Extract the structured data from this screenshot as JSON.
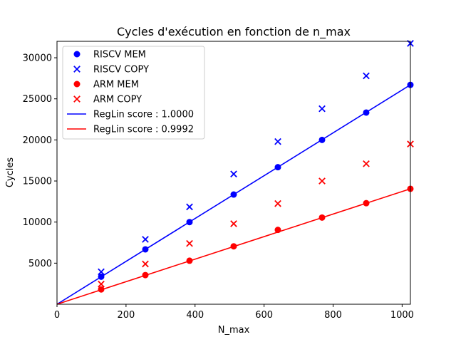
{
  "chart_data": {
    "type": "scatter",
    "title": "Cycles d'exécution en fonction de n_max",
    "xlabel": "N_max",
    "ylabel": "Cycles",
    "xlim": [
      0,
      1024
    ],
    "ylim": [
      0,
      32000
    ],
    "xticks": [
      0,
      200,
      400,
      600,
      800,
      1000
    ],
    "yticks": [
      5000,
      10000,
      15000,
      20000,
      25000,
      30000
    ],
    "grid": false,
    "legend_position": "upper left",
    "series": [
      {
        "name": "RISCV MEM",
        "kind": "scatter",
        "marker": "circle",
        "color": "#0000ff",
        "x": [
          128,
          256,
          384,
          512,
          640,
          768,
          896,
          1024
        ],
        "y": [
          3350,
          6680,
          10000,
          13350,
          16680,
          20000,
          23330,
          26700
        ]
      },
      {
        "name": "RISCV COPY",
        "kind": "scatter",
        "marker": "x",
        "color": "#0000ff",
        "x": [
          128,
          256,
          384,
          512,
          640,
          768,
          896,
          1024
        ],
        "y": [
          3950,
          7900,
          11850,
          15850,
          19800,
          23800,
          27800,
          31750
        ]
      },
      {
        "name": "ARM MEM",
        "kind": "scatter",
        "marker": "circle",
        "color": "#ff0000",
        "x": [
          128,
          256,
          384,
          512,
          640,
          768,
          896,
          1024
        ],
        "y": [
          1800,
          3550,
          5300,
          7050,
          9050,
          10550,
          12300,
          14050
        ]
      },
      {
        "name": "ARM COPY",
        "kind": "scatter",
        "marker": "x",
        "color": "#ff0000",
        "x": [
          128,
          256,
          384,
          512,
          640,
          768,
          896,
          1024
        ],
        "y": [
          2450,
          4900,
          7400,
          9800,
          12250,
          15000,
          17100,
          19500
        ]
      },
      {
        "name": "RegLin score : 1.0000",
        "kind": "line",
        "color": "#0000ff",
        "x": [
          0,
          1024
        ],
        "y": [
          0,
          26700
        ]
      },
      {
        "name": "RegLin score : 0.9992",
        "kind": "line",
        "color": "#ff0000",
        "x": [
          0,
          1024
        ],
        "y": [
          0,
          14050
        ]
      }
    ]
  }
}
